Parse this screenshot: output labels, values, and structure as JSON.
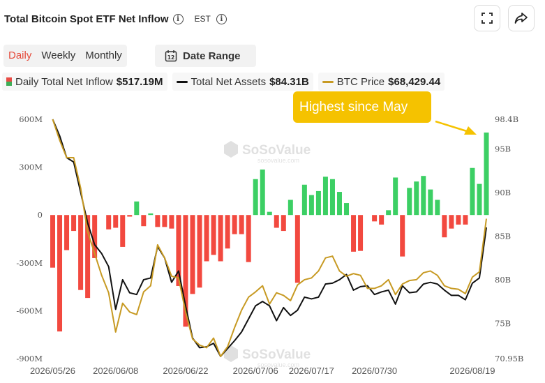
{
  "header": {
    "title": "Total Bitcoin Spot ETF Net Inflow",
    "info_glyph": "i",
    "timezone": "EST"
  },
  "tabs": [
    {
      "label": "Daily",
      "active": true
    },
    {
      "label": "Weekly",
      "active": false
    },
    {
      "label": "Monthly",
      "active": false
    }
  ],
  "date_range": {
    "label": "Date Range",
    "calendar_day": "12"
  },
  "legend": {
    "inflow_label": "Daily Total Net Inflow",
    "inflow_value": "$517.19M",
    "assets_label": "Total Net Assets",
    "assets_value": "$84.31B",
    "price_label": "BTC Price",
    "price_value": "$68,429.44"
  },
  "annotation": "Highest since May",
  "watermark": {
    "brand": "SoSoValue",
    "url": "sosovalue.com"
  },
  "colors": {
    "positive": "#3ccf64",
    "negative": "#f2493f",
    "assets_line": "#111111",
    "price_line": "#c79a23",
    "accent": "#e5493a",
    "annotation_bg": "#f5c200"
  },
  "chart_data": {
    "type": "bar",
    "bar_series_name": "Daily Total Net Inflow",
    "y_left": {
      "ticks": [
        "600M",
        "300M",
        "0",
        "-300M",
        "-600M",
        "-900M"
      ],
      "values": [
        600,
        300,
        0,
        -300,
        -600,
        -900
      ],
      "unit": "M"
    },
    "y_right": {
      "ticks": [
        "98.4B",
        "95B",
        "90B",
        "85B",
        "80B",
        "75B",
        "70.95B"
      ],
      "values": [
        98.4,
        95,
        90,
        85,
        80,
        75,
        70.95
      ],
      "unit": "B"
    },
    "x_ticks": [
      "2026/05/26",
      "2026/06/08",
      "2026/06/22",
      "2026/07/06",
      "2026/07/17",
      "2026/07/30",
      "2026/08/19"
    ],
    "x_tick_index": [
      0,
      9,
      19,
      29,
      37,
      46,
      60
    ],
    "inflow": [
      -330,
      -730,
      -220,
      -100,
      -470,
      -520,
      -270,
      0,
      -90,
      -80,
      -200,
      -10,
      85,
      -70,
      10,
      -75,
      -75,
      -85,
      -445,
      -700,
      -495,
      -455,
      -290,
      -250,
      -290,
      -210,
      -120,
      -120,
      -295,
      225,
      285,
      20,
      -80,
      -100,
      95,
      -425,
      190,
      125,
      150,
      240,
      225,
      145,
      75,
      -230,
      -225,
      0,
      -40,
      -60,
      30,
      235,
      -260,
      170,
      210,
      245,
      160,
      95,
      -140,
      -85,
      -60,
      -60,
      295,
      195,
      517
    ]
  },
  "series": [
    {
      "name": "Total Net Assets",
      "values": [
        98.4,
        96.5,
        94,
        93.5,
        90,
        86.5,
        84,
        83,
        81.5,
        76.6,
        80,
        78.5,
        78.3,
        80,
        80.2,
        83.8,
        82.5,
        79.7,
        81,
        77,
        73.3,
        72.2,
        72.3,
        72.7,
        71.2,
        72.1,
        73,
        74,
        75.5,
        77,
        77.5,
        77,
        75.3,
        76.8,
        75.9,
        76.5,
        78,
        77.8,
        78,
        79.5,
        79.6,
        80,
        80.6,
        78.8,
        79.2,
        79.3,
        78.3,
        78.6,
        78.8,
        77.2,
        79.3,
        78.5,
        78.6,
        79.5,
        79.7,
        79.5,
        78.8,
        78.2,
        78.2,
        77.7,
        79.6,
        80.2,
        86
      ]
    },
    {
      "name": "BTC Price",
      "values": [
        98.4,
        96,
        94,
        94,
        90.5,
        85.5,
        83,
        80.5,
        78.5,
        74,
        77.3,
        76.3,
        76,
        78.6,
        79.3,
        84,
        82.5,
        80.4,
        80.2,
        76.3,
        73.2,
        72.5,
        72.2,
        73.3,
        71.2,
        72.3,
        74.5,
        76.5,
        78,
        78.6,
        79.3,
        77.2,
        78.5,
        78.2,
        77.6,
        79.4,
        80,
        80.2,
        81,
        82.5,
        82.7,
        81,
        80.4,
        80.7,
        80.5,
        79,
        79,
        79.3,
        80,
        78.3,
        79.5,
        79.9,
        80,
        80.8,
        81,
        80.5,
        79.3,
        79,
        78.9,
        78.4,
        80.3,
        80.9,
        87
      ]
    }
  ]
}
